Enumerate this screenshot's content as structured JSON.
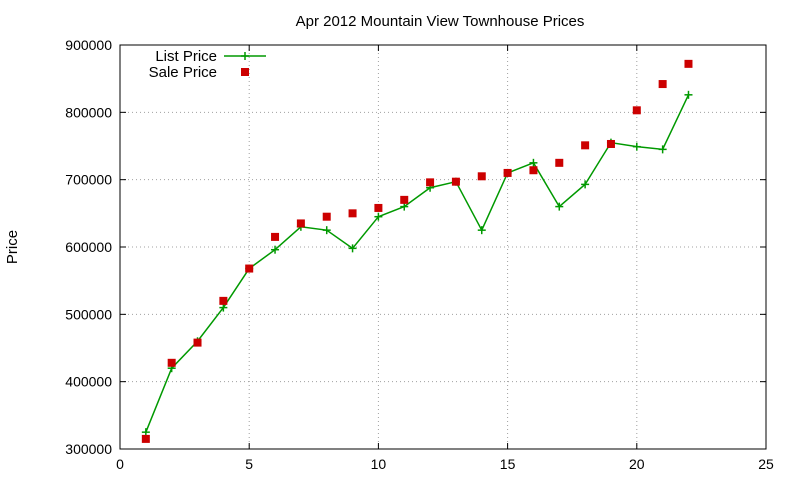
{
  "chart_data": {
    "type": "line",
    "title": "Apr 2012 Mountain View Townhouse Prices",
    "xlabel": "",
    "ylabel": "Price",
    "xlim": [
      0,
      25
    ],
    "ylim": [
      300000,
      900000
    ],
    "x_ticks": [
      0,
      5,
      10,
      15,
      20,
      25
    ],
    "y_ticks": [
      300000,
      400000,
      500000,
      600000,
      700000,
      800000,
      900000
    ],
    "grid": true,
    "legend_position": "top-left",
    "series": [
      {
        "name": "List Price",
        "style": "line+marker",
        "marker": "plus",
        "color": "#009900",
        "x": [
          1,
          2,
          3,
          4,
          5,
          6,
          7,
          8,
          9,
          10,
          11,
          12,
          13,
          14,
          15,
          16,
          17,
          18,
          19,
          20,
          21,
          22
        ],
        "y": [
          325000,
          420000,
          460000,
          510000,
          568000,
          596000,
          630000,
          625000,
          598000,
          645000,
          660000,
          688000,
          697000,
          625000,
          710000,
          725000,
          660000,
          693000,
          755000,
          749000,
          745000,
          826000
        ]
      },
      {
        "name": "Sale Price",
        "style": "points",
        "marker": "square",
        "color": "#cc0000",
        "x": [
          1,
          2,
          3,
          4,
          5,
          6,
          7,
          8,
          9,
          10,
          11,
          12,
          13,
          14,
          15,
          16,
          17,
          18,
          19,
          20,
          21,
          22
        ],
        "y": [
          315000,
          428000,
          458000,
          520000,
          568000,
          615000,
          635000,
          645000,
          650000,
          658000,
          670000,
          696000,
          697000,
          705000,
          710000,
          714000,
          725000,
          751000,
          753000,
          803000,
          842000,
          872000
        ]
      }
    ]
  }
}
